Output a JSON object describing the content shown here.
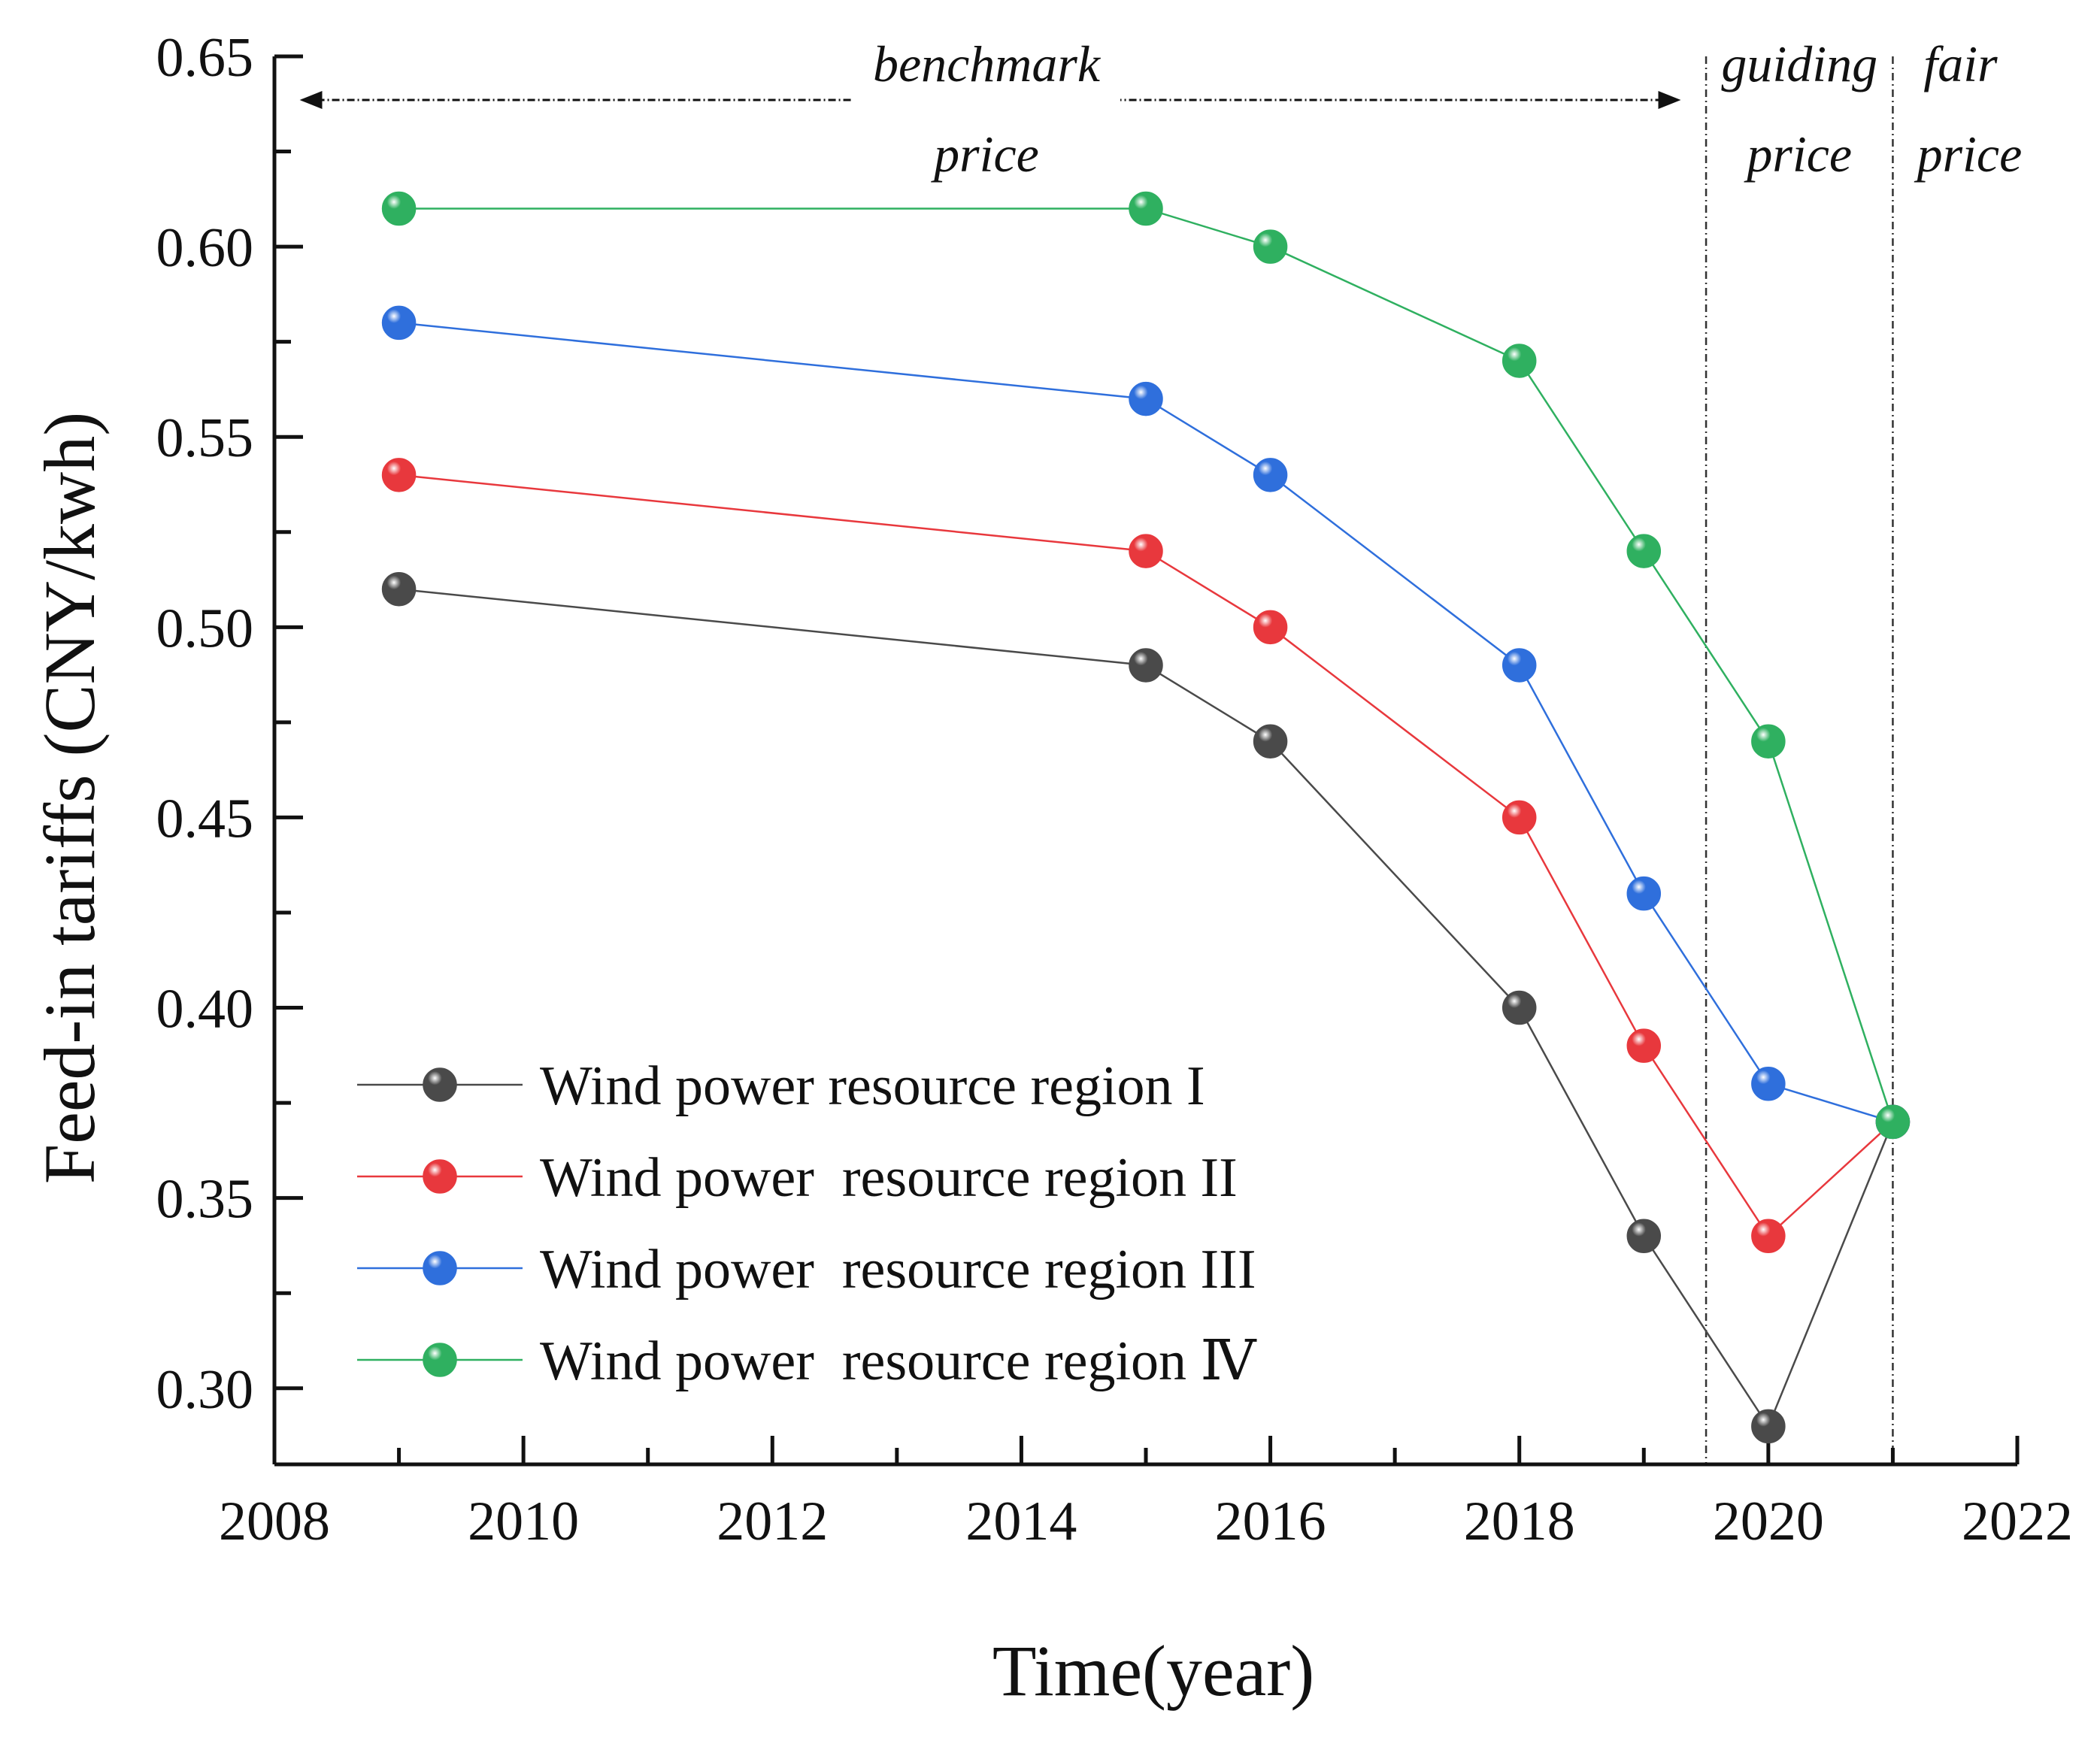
{
  "chart_data": {
    "type": "line",
    "title": "",
    "xlabel": "Time(year)",
    "ylabel": "Feed-in tariffs (CNY/kwh)",
    "xlim": [
      2008,
      2022
    ],
    "ylim": [
      0.28,
      0.65
    ],
    "xticks": [
      "2008",
      "2010",
      "2012",
      "2014",
      "2016",
      "2018",
      "2020",
      "2022"
    ],
    "yticks": [
      "0.30",
      "0.35",
      "0.40",
      "0.45",
      "0.50",
      "0.55",
      "0.60",
      "0.65"
    ],
    "grid": false,
    "legend_position": "bottom-left",
    "x": [
      2009,
      2015,
      2016,
      2018,
      2019,
      2020,
      2021
    ],
    "series": [
      {
        "name": "Wind power resource region I",
        "color": "#4a4a4a",
        "values": [
          0.51,
          0.49,
          0.47,
          0.4,
          0.34,
          0.29,
          0.37
        ]
      },
      {
        "name": "Wind power  resource region II",
        "color": "#e8383d",
        "values": [
          0.54,
          0.52,
          0.5,
          0.45,
          0.39,
          0.34,
          0.37
        ]
      },
      {
        "name": "Wind power  resource region III",
        "color": "#2f6fdc",
        "values": [
          0.58,
          0.56,
          0.54,
          0.49,
          0.43,
          0.38,
          0.37
        ]
      },
      {
        "name": "Wind power  resource region Ⅳ",
        "color": "#2fb060",
        "values": [
          0.61,
          0.61,
          0.6,
          0.57,
          0.52,
          0.47,
          0.37
        ]
      }
    ],
    "annotations": {
      "dividers_x": [
        2019.5,
        2021
      ],
      "benchmark_arrow_x": [
        2008.1,
        2019.4
      ],
      "benchmark_label_line1": "benchmark",
      "benchmark_label_line2": "price",
      "guiding_label_line1": "guiding",
      "guiding_label_line2": "price",
      "fair_label_line1": "fair",
      "fair_label_line2": "price"
    }
  }
}
